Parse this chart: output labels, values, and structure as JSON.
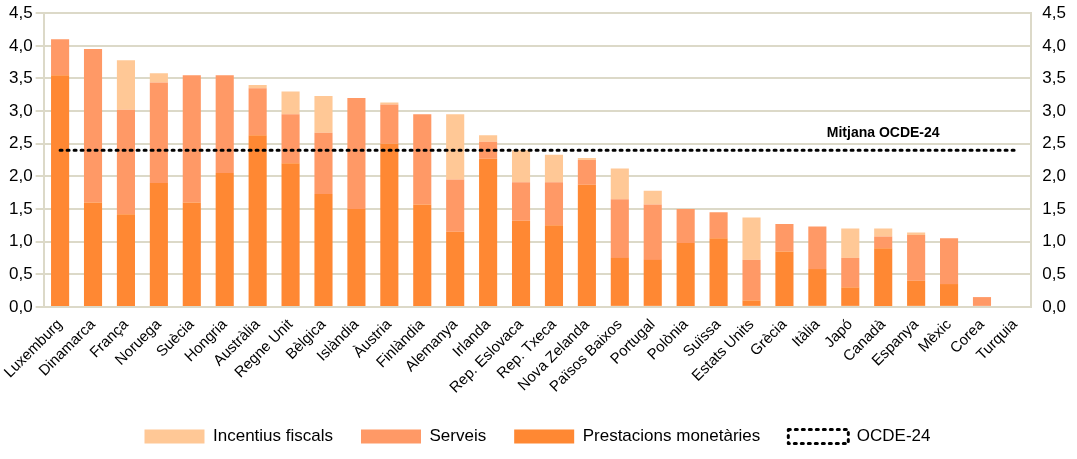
{
  "chart_data": {
    "type": "bar",
    "stacked": true,
    "categories": [
      "Luxemburg",
      "Dinamarca",
      "França",
      "Noruega",
      "Suècia",
      "Hongria",
      "Austràlia",
      "Regne Unit",
      "Bèlgica",
      "Islàndia",
      "Àustria",
      "Finlàndia",
      "Alemanya",
      "Irlanda",
      "Rep. Eslovaca",
      "Rep. Txeca",
      "Nova Zelanda",
      "Països Baixos",
      "Portugal",
      "Polònia",
      "Suïssa",
      "Estats Units",
      "Grècia",
      "Itàlia",
      "Japó",
      "Canadà",
      "Espanya",
      "Mèxic",
      "Corea",
      "Turquia"
    ],
    "series": [
      {
        "name": "Prestacions monetàries",
        "color": "#ff8833",
        "values": [
          3.55,
          1.6,
          1.42,
          1.9,
          1.6,
          2.05,
          2.63,
          2.2,
          1.73,
          1.5,
          2.5,
          1.57,
          1.15,
          2.27,
          1.32,
          1.25,
          1.87,
          0.75,
          0.72,
          0.98,
          1.05,
          0.1,
          0.85,
          0.58,
          0.3,
          0.9,
          0.4,
          0.35,
          0,
          0
        ]
      },
      {
        "name": "Serveis",
        "color": "#ff9966",
        "values": [
          0.55,
          2.35,
          1.6,
          1.54,
          1.95,
          1.5,
          0.72,
          0.75,
          0.94,
          1.7,
          0.6,
          1.38,
          0.8,
          0.26,
          0.59,
          0.66,
          0.38,
          0.9,
          0.85,
          0.52,
          0.4,
          0.62,
          0.42,
          0.65,
          0.45,
          0.18,
          0.7,
          0.7,
          0.15,
          0
        ]
      },
      {
        "name": "Incentius fiscals",
        "color": "#ffc896",
        "values": [
          0,
          0,
          0.76,
          0.14,
          0,
          0,
          0.05,
          0.35,
          0.56,
          0,
          0.03,
          0,
          1.0,
          0.1,
          0.49,
          0.42,
          0.03,
          0.47,
          0.21,
          0,
          0,
          0.65,
          0,
          0,
          0.45,
          0.12,
          0.04,
          0,
          0,
          0
        ]
      },
      {
        "name": "OCDE-24",
        "type": "line",
        "color": "#000000",
        "line_style": "dotted",
        "marker": "none",
        "values": [
          2.4,
          2.4,
          2.4,
          2.4,
          2.4,
          2.4,
          2.4,
          2.4,
          2.4,
          2.4,
          2.4,
          2.4,
          2.4,
          2.4,
          2.4,
          2.4,
          2.4,
          2.4,
          2.4,
          2.4,
          2.4,
          2.4,
          2.4,
          2.4,
          2.4,
          2.4,
          2.4,
          2.4,
          2.4,
          2.4
        ]
      }
    ],
    "ylim": [
      0,
      4.5
    ],
    "yticks": [
      {
        "value": 0,
        "label": "0,0"
      },
      {
        "value": 0.5,
        "label": "0,5"
      },
      {
        "value": 1,
        "label": "1,0"
      },
      {
        "value": 1.5,
        "label": "1,5"
      },
      {
        "value": 2,
        "label": "2,0"
      },
      {
        "value": 2.5,
        "label": "2,5"
      },
      {
        "value": 3,
        "label": "3,0"
      },
      {
        "value": 3.5,
        "label": "3,5"
      },
      {
        "value": 4,
        "label": "4,0"
      },
      {
        "value": 4.5,
        "label": "4,5"
      }
    ],
    "y2lim": [
      0,
      4.5
    ],
    "y2ticks": [
      {
        "value": 0,
        "label": "0,0"
      },
      {
        "value": 0.5,
        "label": "0,5"
      },
      {
        "value": 1,
        "label": "1,0"
      },
      {
        "value": 1.5,
        "label": "1,5"
      },
      {
        "value": 2,
        "label": "2,0"
      },
      {
        "value": 2.5,
        "label": "2,5"
      },
      {
        "value": 3,
        "label": "3,0"
      },
      {
        "value": 3.5,
        "label": "3,5"
      },
      {
        "value": 4,
        "label": "4,0"
      },
      {
        "value": 4.5,
        "label": "4,5"
      }
    ],
    "annotations": [
      {
        "text": "Mitjana OCDE-24",
        "x": "Canadà",
        "y": 2.4
      }
    ],
    "grid": "y",
    "legend": "bottom"
  }
}
